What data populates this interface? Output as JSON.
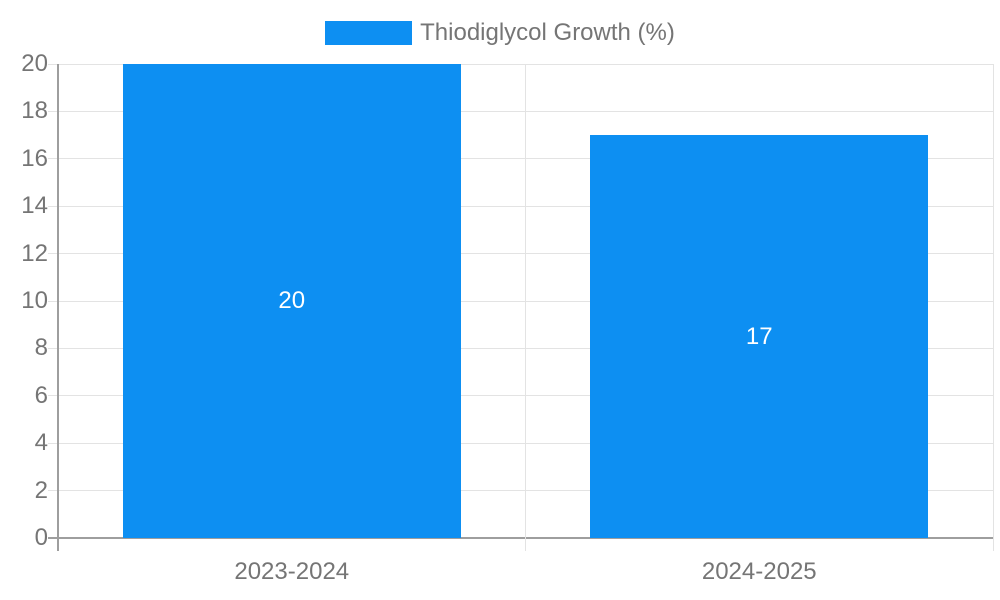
{
  "legend": {
    "label": "Thiodiglycol Growth (%)"
  },
  "colors": {
    "bar": "#0d8ff2",
    "text": "#757575",
    "grid": "#e3e3e3",
    "axis": "#9e9e9e",
    "value_label": "#ffffff",
    "background": "#ffffff"
  },
  "chart_data": {
    "type": "bar",
    "title": "",
    "categories": [
      "2023-2024",
      "2024-2025"
    ],
    "series": [
      {
        "name": "Thiodiglycol Growth (%)",
        "values": [
          20,
          17
        ]
      }
    ],
    "data_labels": [
      "20",
      "17"
    ],
    "xlabel": "",
    "ylabel": "",
    "ylim": [
      0,
      20
    ],
    "yticks": [
      0,
      2,
      4,
      6,
      8,
      10,
      12,
      14,
      16,
      18,
      20
    ],
    "grid": true,
    "legend_position": "top"
  }
}
